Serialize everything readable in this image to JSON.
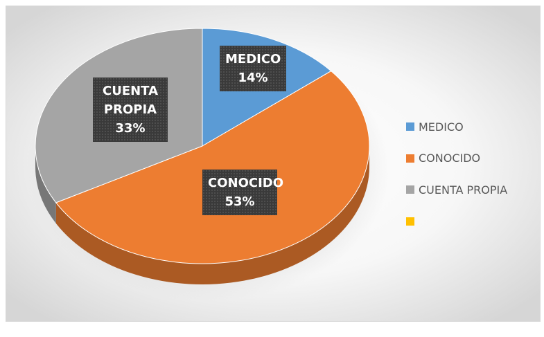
{
  "chart_data": {
    "type": "pie",
    "categories": [
      "MEDICO",
      "CONOCIDO",
      "CUENTA PROPIA",
      null
    ],
    "values": [
      14,
      53,
      33,
      null
    ],
    "value_labels": [
      "14%",
      "53%",
      "33%",
      null
    ],
    "colors": [
      "#5B9BD5",
      "#ED7D31",
      "#A5A5A5",
      "#FFC000"
    ],
    "legend": "right"
  }
}
